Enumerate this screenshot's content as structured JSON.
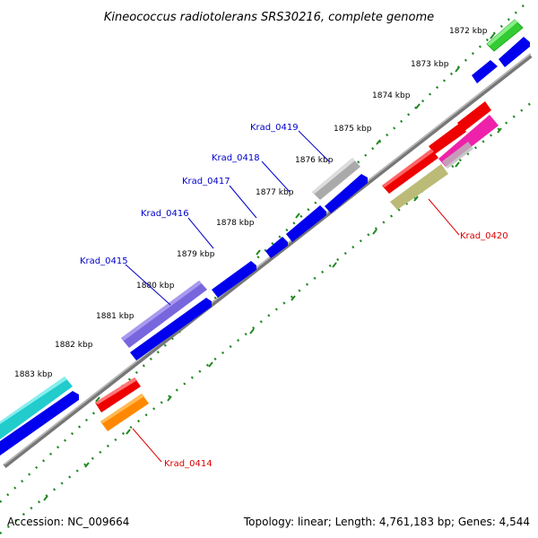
{
  "title": "Kineococcus radiotolerans SRS30216, complete genome",
  "footer": {
    "accession": "Accession: NC_009664",
    "summary": "Topology: linear; Length: 4,761,183 bp; Genes: 4,544"
  },
  "kbp_labels": [
    "1872 kbp",
    "1873 kbp",
    "1874 kbp",
    "1875 kbp",
    "1876 kbp",
    "1877 kbp",
    "1878 kbp",
    "1879 kbp",
    "1880 kbp",
    "1881 kbp",
    "1882 kbp",
    "1883 kbp"
  ],
  "gene_labels": [
    {
      "id": "krad0419",
      "text": "Krad_0419",
      "color": "#0000cc"
    },
    {
      "id": "krad0418",
      "text": "Krad_0418",
      "color": "#0000cc"
    },
    {
      "id": "krad0417",
      "text": "Krad_0417",
      "color": "#0000cc"
    },
    {
      "id": "krad0416",
      "text": "Krad_0416",
      "color": "#0000cc"
    },
    {
      "id": "krad0415",
      "text": "Krad_0415",
      "color": "#0000cc"
    },
    {
      "id": "krad0420",
      "text": "Krad_0420",
      "color": "#dd0000"
    },
    {
      "id": "krad0414",
      "text": "Krad_0414",
      "color": "#dd0000"
    }
  ],
  "colors": {
    "cds_blue": "#0000ee",
    "feature_red": "#ee0000",
    "feature_green": "#33cc33",
    "feature_gray": "#aaaaaa",
    "feature_purple": "#7766dd",
    "feature_cyan": "#22cccc",
    "feature_magenta": "#ee22aa",
    "feature_olive": "#bbbb77",
    "feature_orange": "#ff8800",
    "dotted_track": "#228822",
    "backbone": "#777777"
  }
}
